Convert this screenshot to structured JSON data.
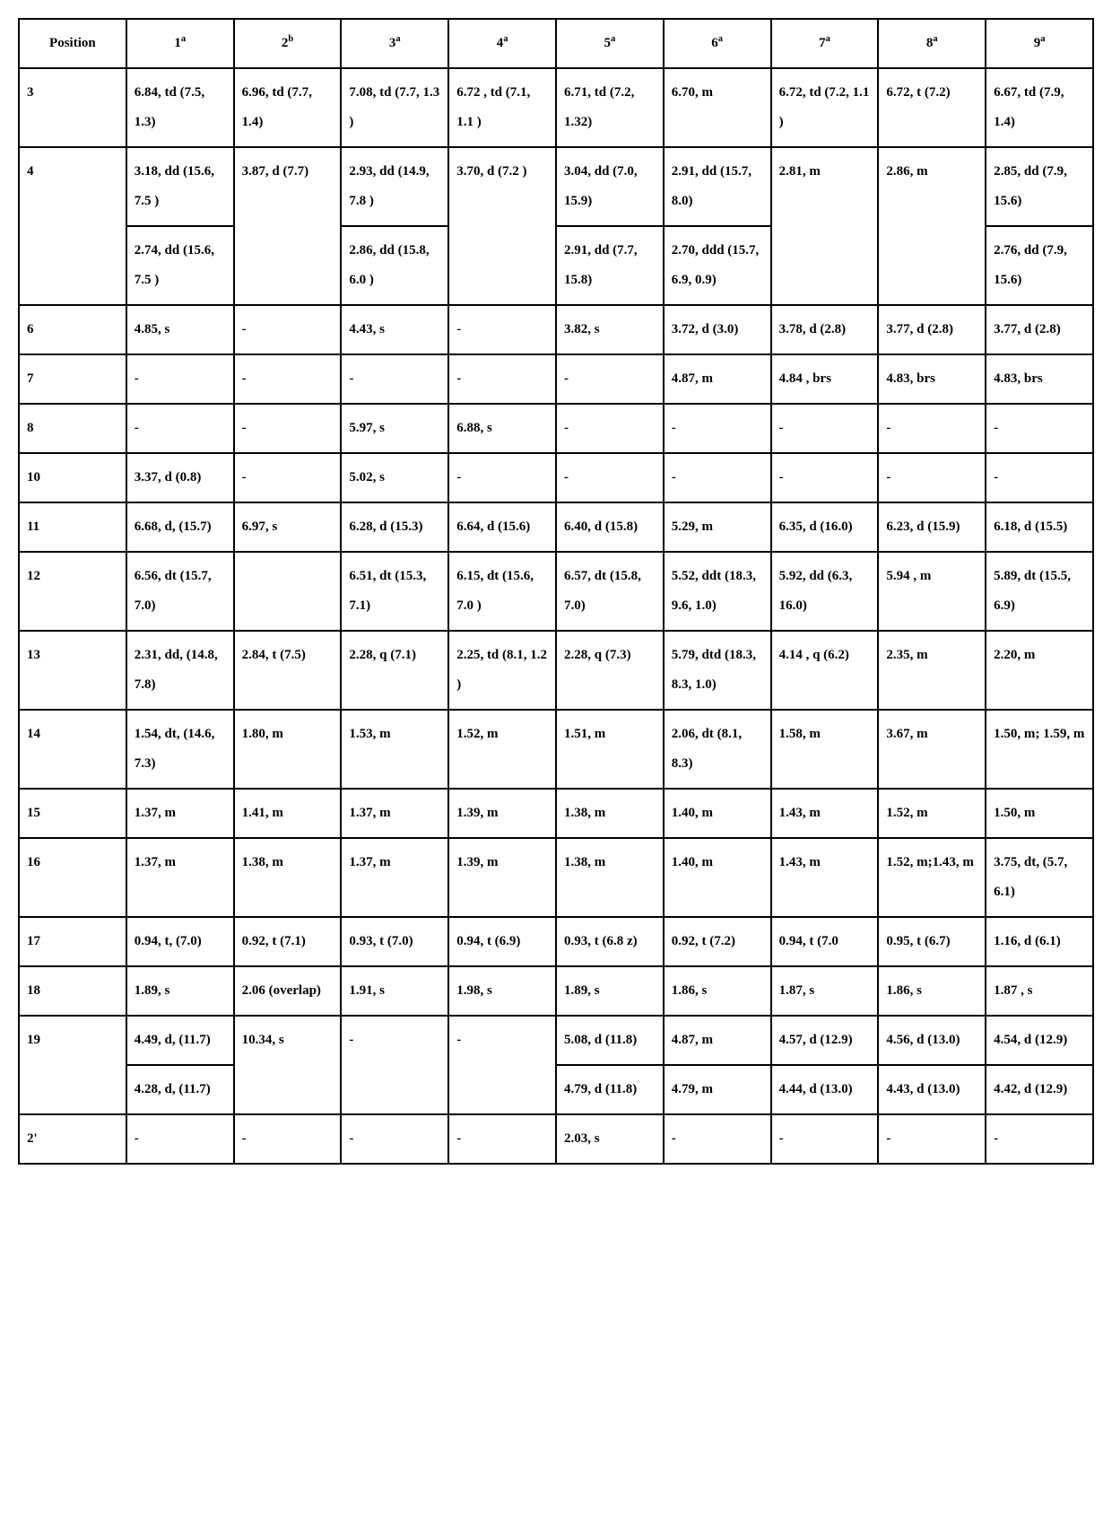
{
  "table": {
    "structure_type": "table",
    "border_color": "#000000",
    "background_color": "#ffffff",
    "text_color": "#000000",
    "font_family": "Times New Roman",
    "font_weight": "bold",
    "font_size_pt": 11,
    "line_height": 2.2,
    "columns": [
      {
        "label": "Position",
        "sup": ""
      },
      {
        "label": "1",
        "sup": "a"
      },
      {
        "label": "2",
        "sup": "b"
      },
      {
        "label": "3",
        "sup": "a"
      },
      {
        "label": "4",
        "sup": "a"
      },
      {
        "label": "5",
        "sup": "a"
      },
      {
        "label": "6",
        "sup": "a"
      },
      {
        "label": "7",
        "sup": "a"
      },
      {
        "label": "8",
        "sup": "a"
      },
      {
        "label": "9",
        "sup": "a"
      }
    ],
    "rows": [
      {
        "pos": "3",
        "cells": [
          "6.84, td (7.5, 1.3)",
          "6.96, td (7.7, 1.4)",
          "7.08, td (7.7, 1.3 )",
          "6.72 , td (7.1, 1.1 )",
          "6.71, td (7.2, 1.32)",
          "6.70, m",
          "6.72, td (7.2, 1.1 )",
          "6.72, t (7.2)",
          "6.67, td (7.9, 1.4)"
        ]
      },
      {
        "pos": "4",
        "cells": [
          "3.18, dd (15.6, 7.5 )\n2.74, dd (15.6, 7.5 )",
          "3.87, d (7.7)",
          "2.93, dd (14.9, 7.8 )\n2.86, dd (15.8, 6.0 )",
          "3.70, d (7.2 )",
          "3.04, dd (7.0, 15.9)\n2.91, dd (7.7, 15.8)",
          "2.91, dd (15.7, 8.0)\n2.70, ddd (15.7, 6.9, 0.9)",
          "2.81, m",
          "2.86, m",
          "2.85, dd (7.9, 15.6)\n2.76, dd (7.9, 15.6)"
        ]
      },
      {
        "pos": "6",
        "cells": [
          "4.85, s",
          "-",
          "4.43, s",
          "-",
          "3.82, s",
          "3.72, d (3.0)",
          "3.78, d (2.8)",
          "3.77, d (2.8)",
          "3.77, d (2.8)"
        ]
      },
      {
        "pos": "7",
        "cells": [
          "-",
          "-",
          "-",
          "-",
          "-",
          "4.87, m",
          "4.84 , brs",
          "4.83, brs",
          "4.83, brs"
        ]
      },
      {
        "pos": "8",
        "cells": [
          "-",
          "-",
          "5.97, s",
          "6.88, s",
          "-",
          "-",
          "-",
          "-",
          "-"
        ]
      },
      {
        "pos": "10",
        "cells": [
          "3.37, d (0.8)",
          "-",
          "5.02, s",
          "-",
          "-",
          "-",
          "-",
          "-",
          "-"
        ]
      },
      {
        "pos": "11",
        "cells": [
          "6.68, d, (15.7)",
          "6.97, s",
          "6.28, d (15.3)",
          "6.64, d (15.6)",
          "6.40, d (15.8)",
          "5.29, m",
          "6.35, d (16.0)",
          "6.23, d (15.9)",
          "6.18, d (15.5)"
        ]
      },
      {
        "pos": "12",
        "cells": [
          "6.56, dt (15.7, 7.0)",
          "",
          "6.51, dt (15.3, 7.1)",
          "6.15, dt (15.6, 7.0 )",
          "6.57, dt (15.8, 7.0)",
          "5.52, ddt (18.3, 9.6, 1.0)",
          "5.92, dd (6.3, 16.0)",
          "5.94 , m",
          "5.89, dt (15.5, 6.9)"
        ]
      },
      {
        "pos": "13",
        "cells": [
          "2.31, dd, (14.8, 7.8)",
          "2.84, t (7.5)",
          "2.28, q (7.1)",
          "2.25, td (8.1, 1.2 )",
          "2.28, q (7.3)",
          "5.79, dtd (18.3, 8.3, 1.0)",
          "4.14 , q (6.2)",
          "2.35, m",
          "2.20, m"
        ]
      },
      {
        "pos": "14",
        "cells": [
          "1.54, dt, (14.6, 7.3)",
          "1.80, m",
          "1.53, m",
          "1.52, m",
          "1.51, m",
          "2.06, dt (8.1, 8.3)",
          "1.58, m",
          "3.67, m",
          "1.50, m; 1.59, m"
        ]
      },
      {
        "pos": "15",
        "cells": [
          "1.37, m",
          "1.41, m",
          "1.37, m",
          "1.39, m",
          "1.38, m",
          "1.40, m",
          "1.43, m",
          "1.52, m",
          "1.50, m"
        ]
      },
      {
        "pos": "16",
        "cells": [
          "1.37, m",
          "1.38, m",
          "1.37, m",
          "1.39, m",
          "1.38, m",
          "1.40, m",
          "1.43, m",
          "1.52, m;1.43, m",
          "3.75, dt, (5.7, 6.1)"
        ]
      },
      {
        "pos": "17",
        "cells": [
          "0.94, t, (7.0)",
          "0.92, t (7.1)",
          "0.93, t (7.0)",
          "0.94, t (6.9)",
          "0.93, t (6.8 z)",
          "0.92, t (7.2)",
          "0.94, t (7.0",
          "0.95, t (6.7)",
          "1.16, d (6.1)"
        ]
      },
      {
        "pos": "18",
        "cells": [
          "1.89, s",
          "2.06 (overlap)",
          "1.91, s",
          "1.98, s",
          "1.89, s",
          "1.86, s",
          "1.87, s",
          "1.86, s",
          "1.87 , s"
        ]
      },
      {
        "pos": "19",
        "cells": [
          "4.49, d, (11.7)\n4.28, d, (11.7)",
          "10.34, s",
          "-",
          "-",
          "5.08, d (11.8)\n4.79, d (11.8)",
          "4.87, m\n4.79, m",
          "4.57, d (12.9)\n4.44, d (13.0)",
          "4.56, d (13.0)\n4.43, d (13.0)",
          "4.54, d (12.9)\n4.42, d (12.9)"
        ]
      },
      {
        "pos": "2'",
        "cells": [
          "-",
          "-",
          "-",
          "-",
          "2.03, s",
          "-",
          "-",
          "-",
          "-"
        ]
      }
    ]
  }
}
